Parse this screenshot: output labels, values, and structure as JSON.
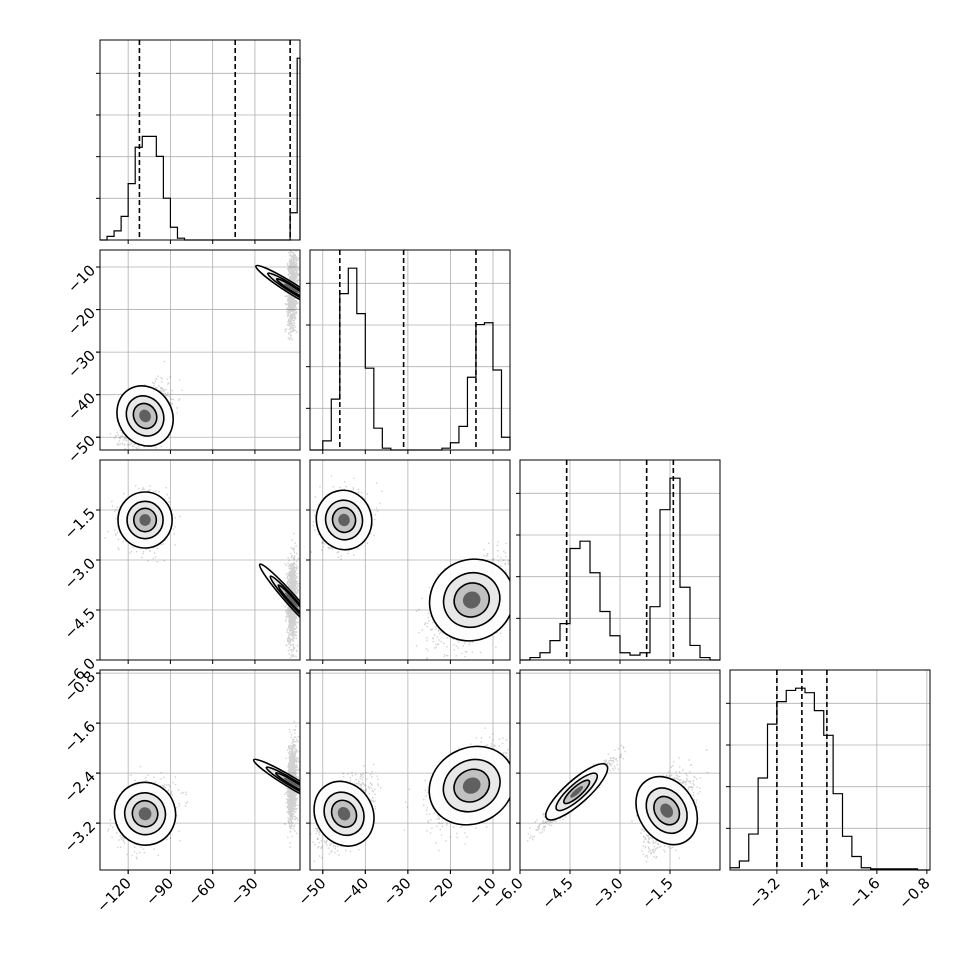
{
  "chart_data": {
    "type": "corner",
    "title": "",
    "grid": true,
    "parameters": [
      {
        "range": [
          -140,
          2
        ],
        "ticks": [
          -120,
          -90,
          -60,
          -30
        ],
        "tick_labels": [
          "−120",
          "−90",
          "−60",
          "−30"
        ],
        "quantiles": [
          -112,
          -44,
          -5
        ],
        "hist": {
          "edges": [
            -140,
            -135,
            -130,
            -125,
            -120,
            -115,
            -110,
            -105,
            -100,
            -95,
            -90,
            -85,
            -80,
            -75,
            -70,
            -65,
            -60,
            -55,
            -50,
            -45,
            -40,
            -35,
            -30,
            -25,
            -20,
            -15,
            -10,
            -5,
            0,
            2
          ],
          "values": [
            0,
            0.2,
            0.5,
            1.3,
            3.1,
            5.1,
            5.7,
            5.7,
            4.6,
            2.3,
            0.7,
            0.1,
            0,
            0,
            0,
            0,
            0,
            0,
            0,
            0,
            0,
            0,
            0,
            0,
            0,
            0,
            0,
            1.5,
            10,
            0
          ]
        }
      },
      {
        "range": [
          -53,
          -6
        ],
        "ticks": [
          -50,
          -40,
          -30,
          -20,
          -10
        ],
        "tick_labels": [
          "−50",
          "−40",
          "−30",
          "−20",
          "−10"
        ],
        "quantiles": [
          -46,
          -31,
          -14
        ],
        "hist": {
          "edges": [
            -53,
            -50,
            -48,
            -46,
            -44,
            -42,
            -40,
            -38,
            -36,
            -34,
            -32,
            -30,
            -28,
            -26,
            -24,
            -22,
            -20,
            -18,
            -16,
            -14,
            -12,
            -10,
            -8,
            -6
          ],
          "values": [
            0,
            0.5,
            2.8,
            8.6,
            10,
            7.5,
            4.5,
            1.2,
            0.1,
            0,
            0,
            0,
            0,
            0,
            0,
            0.1,
            0.4,
            1.3,
            4.0,
            6.9,
            7.0,
            4.4,
            0.7,
            0
          ]
        }
      },
      {
        "range": [
          -6,
          0
        ],
        "ticks": [
          -6.0,
          -4.5,
          -3.0,
          -1.5
        ],
        "tick_labels": [
          "−6.0",
          "−4.5",
          "−3.0",
          "−1.5"
        ],
        "quantiles": [
          -4.6,
          -2.2,
          -1.4
        ],
        "hist": {
          "edges": [
            -6,
            -5.7,
            -5.4,
            -5.1,
            -4.8,
            -4.5,
            -4.2,
            -3.9,
            -3.6,
            -3.3,
            -3.0,
            -2.7,
            -2.4,
            -2.1,
            -1.8,
            -1.5,
            -1.2,
            -0.9,
            -0.6,
            -0.3,
            0
          ],
          "values": [
            0,
            0.1,
            0.3,
            0.8,
            1.5,
            4.6,
            4.9,
            3.6,
            2.0,
            1.0,
            0.3,
            0.2,
            0.3,
            2.2,
            6.2,
            7.5,
            3.0,
            0.6,
            0.1,
            0
          ]
        }
      },
      {
        "range": [
          -3.95,
          -0.75
        ],
        "ticks": [
          -3.2,
          -2.4,
          -1.6,
          -0.8
        ],
        "tick_labels": [
          "−3.2",
          "−2.4",
          "−1.6",
          "−0.8"
        ],
        "quantiles": [
          -3.2,
          -2.8,
          -2.4
        ],
        "hist": {
          "edges": [
            -3.95,
            -3.8,
            -3.65,
            -3.5,
            -3.35,
            -3.2,
            -3.05,
            -2.9,
            -2.75,
            -2.6,
            -2.45,
            -2.3,
            -2.15,
            -2.0,
            -1.85,
            -1.7,
            -1.55,
            -1.4,
            -1.25,
            -1.1,
            -0.95,
            -0.75
          ],
          "values": [
            0.1,
            0.4,
            1.6,
            4.1,
            6.5,
            7.5,
            8.0,
            8.1,
            7.9,
            7.1,
            6.0,
            3.4,
            1.5,
            0.6,
            0.1,
            0.05,
            0.05,
            0.05,
            0.05,
            0.05,
            0
          ]
        }
      }
    ],
    "pairs": [
      {
        "x": 0,
        "y": 1,
        "modes": [
          {
            "mx": -108,
            "my": -45,
            "sx": 8,
            "sy": 3.4,
            "rho": 0.45,
            "w": 1
          },
          {
            "mx": -4,
            "my": -15,
            "sx": 1.6,
            "sy": 4.2,
            "rho": 0.2,
            "w": 1
          }
        ]
      },
      {
        "x": 0,
        "y": 2,
        "modes": [
          {
            "mx": -108,
            "my": -1.8,
            "sx": 8,
            "sy": 0.35,
            "rho": 0,
            "w": 1
          },
          {
            "mx": -4,
            "my": -4.2,
            "sx": 1.6,
            "sy": 0.6,
            "rho": 0.1,
            "w": 1
          }
        ]
      },
      {
        "x": 0,
        "y": 3,
        "modes": [
          {
            "mx": -108,
            "my": -3.05,
            "sx": 9,
            "sy": 0.22,
            "rho": 0.3,
            "w": 1
          },
          {
            "mx": -4,
            "my": -2.55,
            "sx": 1.6,
            "sy": 0.3,
            "rho": 0.2,
            "w": 1
          }
        ]
      },
      {
        "x": 1,
        "y": 2,
        "modes": [
          {
            "mx": -45,
            "my": -1.8,
            "sx": 2.7,
            "sy": 0.38,
            "rho": 0.2,
            "w": 1
          },
          {
            "mx": -15,
            "my": -4.2,
            "sx": 4.2,
            "sy": 0.6,
            "rho": 0.55,
            "w": 1
          }
        ]
      },
      {
        "x": 1,
        "y": 3,
        "modes": [
          {
            "mx": -45,
            "my": -3.05,
            "sx": 2.8,
            "sy": 0.25,
            "rho": 0.45,
            "w": 1
          },
          {
            "mx": -15,
            "my": -2.6,
            "sx": 4.3,
            "sy": 0.3,
            "rho": 0.55,
            "w": 1
          }
        ]
      },
      {
        "x": 2,
        "y": 3,
        "modes": [
          {
            "mx": -4.3,
            "my": -2.7,
            "sx": 0.5,
            "sy": 0.25,
            "rho": 0.95,
            "w": 1.2
          },
          {
            "mx": -1.6,
            "my": -3.0,
            "sx": 0.35,
            "sy": 0.27,
            "rho": 0.45,
            "w": 1
          }
        ]
      }
    ]
  }
}
